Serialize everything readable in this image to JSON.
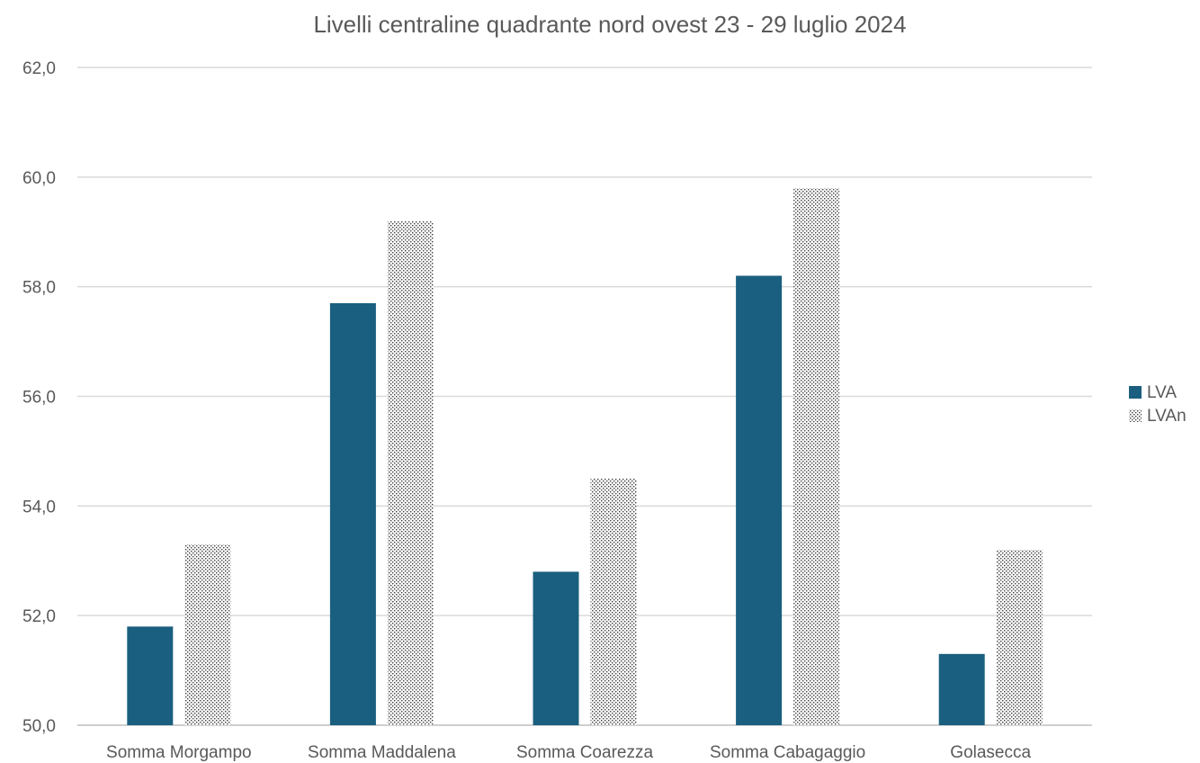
{
  "chart_data": {
    "type": "bar",
    "title": "Livelli centraline quadrante nord ovest 23 - 29 luglio 2024",
    "xlabel": "",
    "ylabel": "",
    "categories": [
      "Somma Morgampo",
      "Somma Maddalena",
      "Somma Coarezza",
      "Somma Cabagaggio",
      "Golasecca"
    ],
    "series": [
      {
        "name": "LVA",
        "values": [
          51.8,
          57.7,
          52.8,
          58.2,
          51.3
        ],
        "color": "#1a5f7f",
        "pattern": "solid"
      },
      {
        "name": "LVAn",
        "values": [
          53.3,
          59.2,
          54.5,
          59.8,
          53.2
        ],
        "color": "#3f3f3f",
        "pattern": "dotted"
      }
    ],
    "ylim": [
      50,
      62
    ],
    "yticks": [
      "50,0",
      "52,0",
      "54,0",
      "56,0",
      "58,0",
      "60,0",
      "62,0"
    ],
    "grid": true,
    "legend_position": "right"
  }
}
